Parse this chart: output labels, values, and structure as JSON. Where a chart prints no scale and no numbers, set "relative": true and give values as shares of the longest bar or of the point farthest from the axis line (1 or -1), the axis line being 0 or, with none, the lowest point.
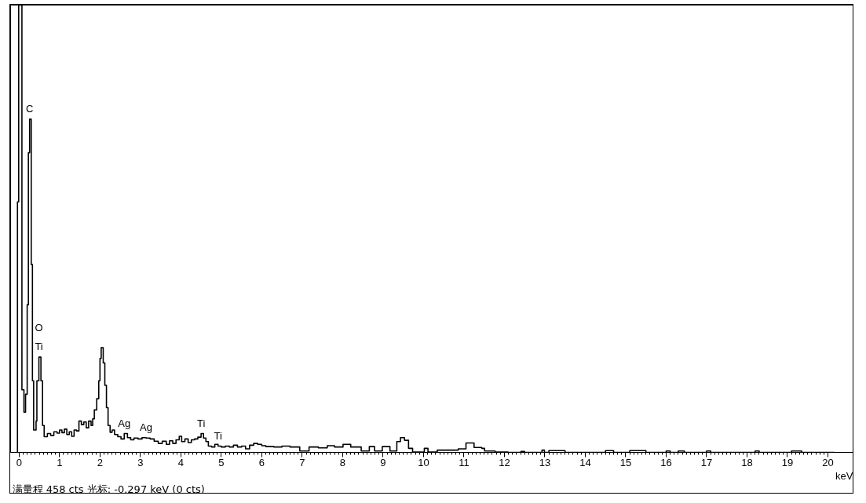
{
  "chart_data": {
    "type": "step",
    "xlabel": "keV",
    "relative": true,
    "xlim": [
      -0.21,
      20.66
    ],
    "xticks": [
      0,
      1,
      2,
      3,
      4,
      5,
      6,
      7,
      8,
      9,
      10,
      11,
      12,
      13,
      14,
      15,
      16,
      17,
      18,
      19,
      20
    ],
    "x": [
      -0.06,
      -0.04,
      -0.01,
      0.07,
      0.12,
      0.16,
      0.2,
      0.23,
      0.26,
      0.3,
      0.33,
      0.36,
      0.42,
      0.44,
      0.49,
      0.54,
      0.58,
      0.62,
      0.7,
      0.78,
      0.86,
      0.94,
      1.0,
      1.06,
      1.12,
      1.18,
      1.24,
      1.3,
      1.36,
      1.42,
      1.48,
      1.54,
      1.6,
      1.66,
      1.72,
      1.78,
      1.82,
      1.86,
      1.92,
      1.97,
      2.0,
      2.03,
      2.08,
      2.12,
      2.16,
      2.2,
      2.25,
      2.3,
      2.36,
      2.44,
      2.52,
      2.6,
      2.68,
      2.76,
      2.84,
      2.94,
      3.04,
      3.14,
      3.24,
      3.34,
      3.44,
      3.54,
      3.64,
      3.72,
      3.8,
      3.88,
      3.96,
      4.02,
      4.1,
      4.18,
      4.26,
      4.34,
      4.42,
      4.5,
      4.56,
      4.62,
      4.68,
      4.76,
      4.84,
      4.92,
      5.0,
      5.1,
      5.2,
      5.3,
      5.4,
      5.5,
      5.6,
      5.7,
      5.8,
      5.9,
      6.0,
      6.1,
      6.3,
      6.5,
      6.7,
      6.94,
      7.17,
      7.4,
      7.62,
      7.8,
      8.01,
      8.2,
      8.46,
      8.66,
      8.79,
      8.98,
      9.17,
      9.34,
      9.43,
      9.53,
      9.63,
      9.73,
      10.02,
      10.11,
      10.34,
      10.86,
      11.05,
      11.25,
      11.44,
      11.51,
      11.77,
      12.09,
      12.41,
      12.5,
      12.93,
      12.99,
      13.1,
      13.5,
      14.5,
      14.7,
      15.1,
      15.5,
      16.0,
      16.1,
      16.3,
      16.45,
      17.0,
      17.1,
      18.2,
      18.3,
      19.1,
      19.35,
      20.16
    ],
    "series": [
      {
        "color": "#000000",
        "values": [
          0,
          0.56,
          1,
          0.14,
          0.09,
          0.13,
          0.33,
          0.67,
          0.745,
          0.42,
          0.16,
          0.05,
          0.07,
          0.16,
          0.213,
          0.16,
          0.06,
          0.035,
          0.042,
          0.038,
          0.046,
          0.043,
          0.05,
          0.044,
          0.052,
          0.04,
          0.046,
          0.036,
          0.05,
          0.048,
          0.07,
          0.062,
          0.068,
          0.055,
          0.07,
          0.06,
          0.075,
          0.095,
          0.12,
          0.16,
          0.21,
          0.234,
          0.2,
          0.15,
          0.1,
          0.06,
          0.045,
          0.05,
          0.04,
          0.035,
          0.03,
          0.042,
          0.033,
          0.028,
          0.032,
          0.03,
          0.033,
          0.032,
          0.03,
          0.025,
          0.02,
          0.025,
          0.018,
          0.026,
          0.02,
          0.028,
          0.036,
          0.024,
          0.03,
          0.022,
          0.028,
          0.03,
          0.034,
          0.042,
          0.032,
          0.024,
          0.014,
          0.012,
          0.018,
          0.014,
          0.012,
          0.014,
          0.012,
          0.016,
          0.012,
          0.014,
          0.008,
          0.016,
          0.02,
          0.018,
          0.015,
          0.013,
          0.012,
          0.014,
          0.012,
          0.003,
          0.012,
          0.01,
          0.015,
          0.012,
          0.018,
          0.012,
          0.003,
          0.013,
          0.003,
          0.013,
          0.003,
          0.024,
          0.033,
          0.027,
          0.009,
          0.001,
          0.009,
          0.001,
          0.005,
          0.008,
          0.021,
          0.011,
          0.009,
          0.003,
          0.001,
          0,
          0.002,
          0,
          0.005,
          0,
          0.004,
          0,
          0.004,
          0,
          0.004,
          0,
          0.003,
          0,
          0.003,
          0,
          0.003,
          0,
          0.003,
          0,
          0.003,
          0,
          0
        ]
      }
    ],
    "annotations": [
      {
        "text": "C",
        "x": 0.26,
        "y": 0.745
      },
      {
        "text": "O",
        "x": 0.49,
        "y": 0.213
      },
      {
        "text": "Ti",
        "x": 0.49,
        "y": 0.213
      },
      {
        "text": "Ag",
        "x": 2.6,
        "y": 0.042
      },
      {
        "text": "Ag",
        "x": 3.14,
        "y": 0.032
      },
      {
        "text": "Ti",
        "x": 4.5,
        "y": 0.042
      },
      {
        "text": "Ti",
        "x": 4.92,
        "y": 0.014
      },
      "满量程 458 cts  光标: -0.297 keV (0 cts)"
    ]
  }
}
